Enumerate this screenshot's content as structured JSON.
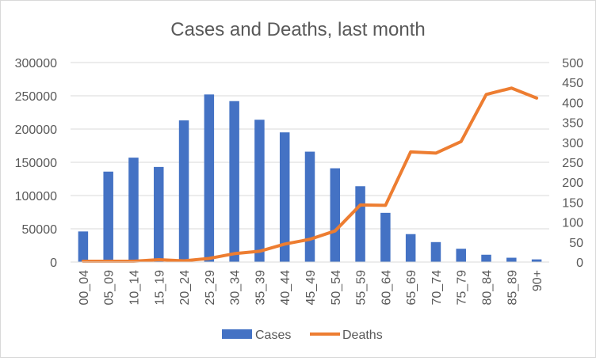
{
  "chart_data": {
    "type": "bar",
    "title": "Cases and Deaths, last month",
    "categories": [
      "00_04",
      "05_09",
      "10_14",
      "15_19",
      "20_24",
      "25_29",
      "30_34",
      "35_39",
      "40_44",
      "45_49",
      "50_54",
      "55_59",
      "60_64",
      "65_69",
      "70_74",
      "75_79",
      "80_84",
      "85_89",
      "90+"
    ],
    "series": [
      {
        "name": "Cases",
        "type": "bar",
        "axis": "left",
        "color": "#4472C4",
        "values": [
          46000,
          136000,
          157000,
          143000,
          213000,
          252000,
          242000,
          214000,
          195000,
          166000,
          141000,
          114000,
          74000,
          42000,
          30000,
          20000,
          11000,
          6500,
          4000
        ]
      },
      {
        "name": "Deaths",
        "type": "line",
        "axis": "right",
        "color": "#ED7D31",
        "values": [
          2,
          2,
          2,
          6,
          3,
          9,
          21,
          27,
          45,
          57,
          78,
          143,
          142,
          276,
          273,
          302,
          420,
          436,
          411
        ]
      }
    ],
    "y_left": {
      "min": 0,
      "max": 300000,
      "ticks": [
        "0",
        "50000",
        "100000",
        "150000",
        "200000",
        "250000",
        "300000"
      ]
    },
    "y_right": {
      "min": 0,
      "max": 500,
      "ticks": [
        "0",
        "50",
        "100",
        "150",
        "200",
        "250",
        "300",
        "350",
        "400",
        "450",
        "500"
      ]
    },
    "grid": true,
    "legend": "bottom"
  }
}
